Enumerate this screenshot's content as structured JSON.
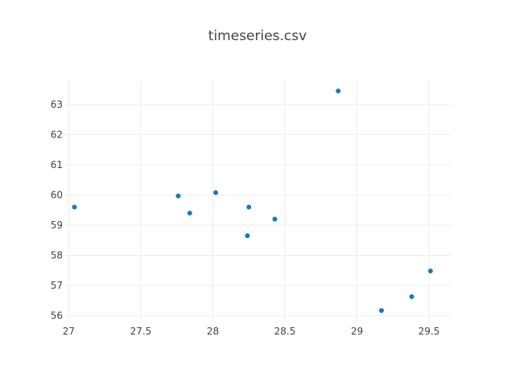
{
  "chart_data": {
    "type": "scatter",
    "title": "timeseries.csv",
    "xlabel": "",
    "ylabel": "",
    "xlim": [
      26.97,
      29.65
    ],
    "ylim": [
      55.8,
      63.8
    ],
    "x_ticks": [
      27,
      27.5,
      28,
      28.5,
      29,
      29.5
    ],
    "x_tick_labels": [
      "27",
      "27.5",
      "28",
      "28.5",
      "29",
      "29.5"
    ],
    "y_ticks": [
      56,
      57,
      58,
      59,
      60,
      61,
      62,
      63
    ],
    "y_tick_labels": [
      "56",
      "57",
      "58",
      "59",
      "60",
      "61",
      "62",
      "63"
    ],
    "grid": true,
    "legend": "none",
    "series": [
      {
        "color": "#1f77b4",
        "points": [
          {
            "x": 27.04,
            "y": 59.6
          },
          {
            "x": 27.76,
            "y": 59.97
          },
          {
            "x": 27.84,
            "y": 59.4
          },
          {
            "x": 28.02,
            "y": 60.08
          },
          {
            "x": 28.24,
            "y": 58.65
          },
          {
            "x": 28.25,
            "y": 59.6
          },
          {
            "x": 28.43,
            "y": 59.2
          },
          {
            "x": 28.87,
            "y": 63.45
          },
          {
            "x": 29.17,
            "y": 56.17
          },
          {
            "x": 29.38,
            "y": 56.63
          },
          {
            "x": 29.51,
            "y": 57.48
          }
        ]
      }
    ]
  }
}
